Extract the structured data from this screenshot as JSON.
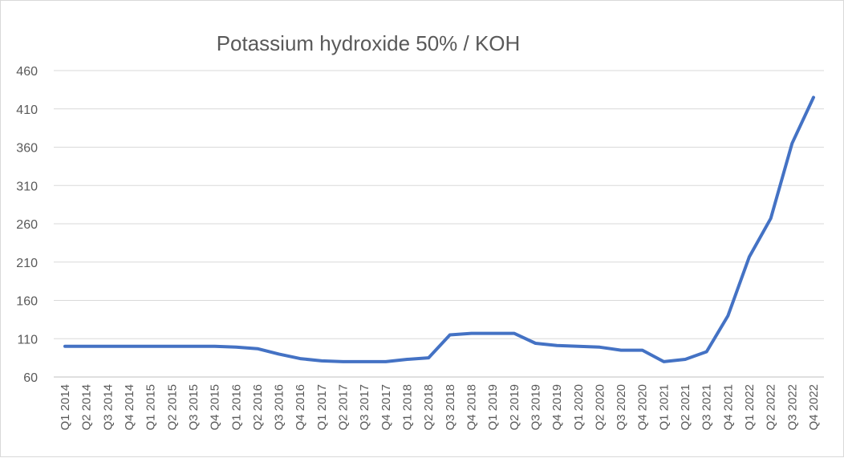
{
  "chart_data": {
    "type": "line",
    "title": "Potassium hydroxide 50% / KOH",
    "xlabel": "",
    "ylabel": "",
    "ylim": [
      60,
      460
    ],
    "yticks": [
      60,
      110,
      160,
      210,
      260,
      310,
      360,
      410,
      460
    ],
    "grid": true,
    "legend": "none",
    "color": "#4472c4",
    "categories": [
      "Q1 2014",
      "Q2 2014",
      "Q3 2014",
      "Q4 2014",
      "Q1 2015",
      "Q2 2015",
      "Q3 2015",
      "Q4 2015",
      "Q1 2016",
      "Q2 2016",
      "Q3 2016",
      "Q4 2016",
      "Q1 2017",
      "Q2 2017",
      "Q3 2017",
      "Q4 2017",
      "Q1 2018",
      "Q2 2018",
      "Q3 2018",
      "Q4 2018",
      "Q1 2019",
      "Q2 2019",
      "Q3 2019",
      "Q4 2019",
      "Q1 2020",
      "Q2 2020",
      "Q3 2020",
      "Q4 2020",
      "Q1 2021",
      "Q2 2021",
      "Q3 2021",
      "Q4 2021",
      "Q1 2022",
      "Q2 2022",
      "Q3 2022",
      "Q4 2022"
    ],
    "series": [
      {
        "values": [
          100,
          100,
          100,
          100,
          100,
          100,
          100,
          100,
          99,
          97,
          90,
          84,
          81,
          80,
          80,
          80,
          83,
          85,
          115,
          117,
          117,
          117,
          104,
          101,
          100,
          99,
          95,
          95,
          80,
          83,
          93,
          140,
          217,
          267,
          365,
          425
        ]
      }
    ]
  }
}
